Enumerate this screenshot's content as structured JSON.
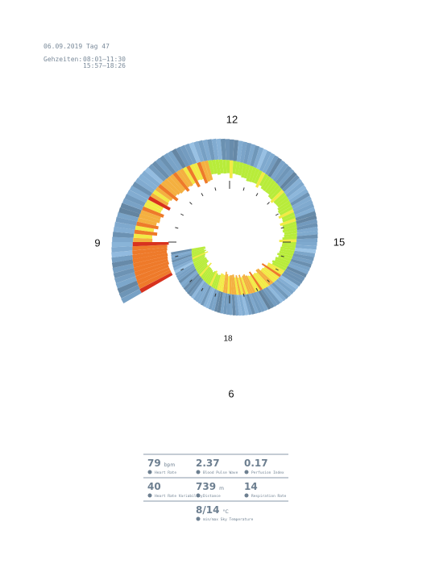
{
  "header": {
    "date": "06.09.2019 Tag 47",
    "label": "Gehzeiten:",
    "times": [
      "08:01–11:30",
      "15:57–18:26"
    ]
  },
  "clock": {
    "labels": [
      "12",
      "15",
      "18",
      "9",
      "6"
    ]
  },
  "stats": [
    {
      "value": "79",
      "unit": "bpm",
      "label": "Heart Rate"
    },
    {
      "value": "2.37",
      "label": "Blood Pulse Wave"
    },
    {
      "value": "0.17",
      "label": "Perfusion Index"
    },
    {
      "value": "40",
      "label": "Heart Rate Variability"
    },
    {
      "value": "739",
      "unit": "m",
      "label": "Distance"
    },
    {
      "value": "14",
      "label": "Respiration Rate"
    },
    {
      "value": "8/14",
      "unit": "°C",
      "label": "min/max Sky Temperature"
    }
  ]
}
